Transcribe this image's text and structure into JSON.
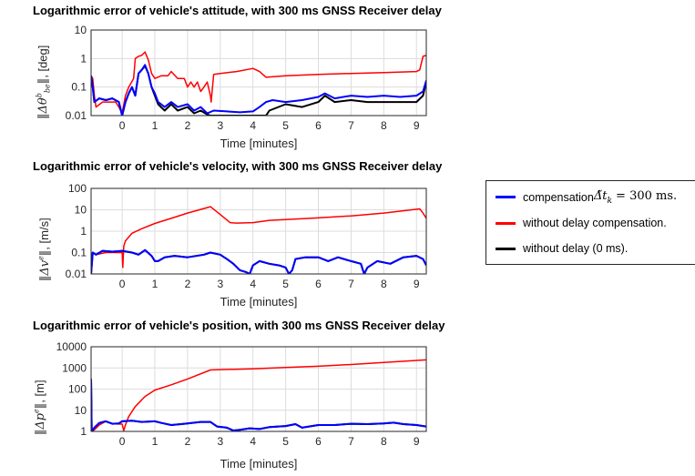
{
  "colors": {
    "compensated": "#0000ff",
    "uncompensated": "#ff0000",
    "no_delay": "#000000",
    "grid": "#dcdcdc",
    "axis": "#262626"
  },
  "legend": {
    "placement": "right",
    "items": [
      {
        "series": "compensated",
        "text": "compensation",
        "math_symbol": "Δ̃t",
        "math_sub": "k",
        "math_rest": " = 300 ms."
      },
      {
        "series": "uncompensated",
        "text": "without delay compensation."
      },
      {
        "series": "no_delay",
        "text": "without delay (0 ms)."
      }
    ]
  },
  "chart_data": [
    {
      "type": "line",
      "title": "Logarithmic error of vehicle's attitude, with 300 ms GNSS Receiver delay",
      "xlabel": "Time [minutes]",
      "ylabel": {
        "symbol": "Δθ",
        "sup": "b",
        "sub": "be",
        "unit": ", [deg]"
      },
      "xlim": [
        -0.95,
        9.3
      ],
      "ylim": [
        0.01,
        10
      ],
      "yscale": "log",
      "grid": true,
      "xticks": [
        0,
        1,
        2,
        3,
        4,
        5,
        6,
        7,
        8,
        9
      ],
      "xticklabels": [
        "0",
        "1",
        "2",
        "3",
        "4",
        "5",
        "6",
        "7",
        "8",
        "9"
      ],
      "yticks": [
        0.01,
        0.1,
        1,
        10
      ],
      "yticklabels": [
        "0.01",
        "0.1",
        "1",
        "10"
      ],
      "series": [
        {
          "key": "uncompensated",
          "x": [
            -0.95,
            -0.9,
            -0.85,
            -0.8,
            -0.6,
            -0.4,
            -0.2,
            -0.1,
            0,
            0.1,
            0.2,
            0.35,
            0.4,
            0.5,
            0.6,
            0.7,
            0.8,
            0.9,
            1.0,
            1.2,
            1.4,
            1.5,
            1.7,
            1.9,
            2.0,
            2.1,
            2.2,
            2.3,
            2.4,
            2.5,
            2.6,
            2.7,
            2.72,
            2.8,
            3.0,
            3.5,
            4.0,
            4.2,
            4.4,
            5,
            6,
            7,
            8,
            9.0,
            9.1,
            9.2,
            9.3
          ],
          "y": [
            0.25,
            0.2,
            0.05,
            0.02,
            0.03,
            0.03,
            0.03,
            0.02,
            0.012,
            0.05,
            0.1,
            0.2,
            1,
            1.2,
            1.3,
            1.7,
            0.9,
            0.3,
            0.2,
            0.25,
            0.25,
            0.35,
            0.2,
            0.2,
            0.1,
            0.15,
            0.1,
            0.15,
            0.07,
            0.1,
            0.15,
            0.05,
            0.03,
            0.28,
            0.3,
            0.35,
            0.45,
            0.35,
            0.22,
            0.25,
            0.28,
            0.3,
            0.32,
            0.35,
            0.4,
            1.2,
            1.3
          ]
        },
        {
          "key": "no_delay",
          "x": [
            -0.95,
            -0.9,
            -0.85,
            -0.7,
            -0.5,
            -0.3,
            -0.1,
            0,
            0.1,
            0.2,
            0.3,
            0.4,
            0.5,
            0.6,
            0.7,
            0.8,
            0.9,
            1.0,
            1.1,
            1.3,
            1.5,
            1.7,
            2.0,
            2.2,
            2.4,
            2.6,
            2.7,
            4.4,
            4.5,
            5,
            5.5,
            6,
            6.2,
            6.5,
            7,
            7.5,
            8,
            8.5,
            9,
            9.2,
            9.3
          ],
          "y": [
            0.25,
            0.1,
            0.03,
            0.04,
            0.035,
            0.04,
            0.03,
            0.01,
            0.03,
            0.06,
            0.1,
            0.05,
            0.3,
            0.4,
            0.55,
            0.3,
            0.1,
            0.05,
            0.025,
            0.015,
            0.025,
            0.015,
            0.02,
            0.012,
            0.015,
            0.011,
            0.01,
            0.01,
            0.015,
            0.025,
            0.02,
            0.03,
            0.05,
            0.03,
            0.035,
            0.03,
            0.03,
            0.03,
            0.03,
            0.05,
            0.15
          ]
        },
        {
          "key": "compensated",
          "x": [
            -0.95,
            -0.9,
            -0.85,
            -0.7,
            -0.5,
            -0.3,
            -0.1,
            0,
            0.1,
            0.2,
            0.3,
            0.4,
            0.5,
            0.6,
            0.7,
            0.8,
            0.9,
            1.0,
            1.1,
            1.3,
            1.5,
            1.7,
            2.0,
            2.2,
            2.4,
            2.6,
            2.8,
            3.2,
            3.6,
            4.0,
            4.2,
            4.4,
            4.6,
            5,
            5.5,
            6,
            6.2,
            6.5,
            7,
            7.5,
            8,
            8.5,
            9,
            9.2,
            9.3
          ],
          "y": [
            0.25,
            0.1,
            0.03,
            0.04,
            0.035,
            0.04,
            0.03,
            0.01,
            0.03,
            0.06,
            0.1,
            0.05,
            0.3,
            0.4,
            0.6,
            0.3,
            0.1,
            0.06,
            0.03,
            0.02,
            0.03,
            0.02,
            0.025,
            0.015,
            0.02,
            0.012,
            0.015,
            0.014,
            0.013,
            0.014,
            0.02,
            0.03,
            0.035,
            0.03,
            0.035,
            0.045,
            0.06,
            0.04,
            0.05,
            0.045,
            0.05,
            0.045,
            0.05,
            0.07,
            0.17
          ]
        }
      ]
    },
    {
      "type": "line",
      "title": "Logarithmic error of vehicle's velocity, with 300 ms GNSS Receiver delay",
      "xlabel": "Time [minutes]",
      "ylabel": {
        "symbol": "Δv",
        "sup": "e",
        "sub": "",
        "unit": ", [m/s]"
      },
      "xlim": [
        -0.95,
        9.3
      ],
      "ylim": [
        0.01,
        100
      ],
      "yscale": "log",
      "grid": true,
      "xticks": [
        0,
        1,
        2,
        3,
        4,
        5,
        6,
        7,
        8,
        9
      ],
      "xticklabels": [
        "0",
        "1",
        "2",
        "3",
        "4",
        "5",
        "6",
        "7",
        "8",
        "9"
      ],
      "yticks": [
        0.01,
        0.1,
        1,
        10,
        100
      ],
      "yticklabels": [
        "0.01",
        "0.1",
        "1",
        "10",
        "100"
      ],
      "series": [
        {
          "key": "uncompensated",
          "x": [
            -0.95,
            -0.9,
            -0.8,
            -0.5,
            -0.2,
            0,
            0.02,
            0.05,
            0.1,
            0.3,
            0.6,
            1,
            1.5,
            2,
            2.7,
            3.0,
            3.3,
            3.5,
            4,
            4.5,
            5,
            6,
            7,
            8,
            9.1,
            9.2,
            9.3
          ],
          "y": [
            0.03,
            0.1,
            0.08,
            0.1,
            0.1,
            0.1,
            0.02,
            0.2,
            0.35,
            0.8,
            1.3,
            2.3,
            4,
            7,
            14,
            6,
            2.5,
            2.4,
            2.5,
            3.2,
            3.5,
            4.2,
            5.2,
            7,
            11,
            7,
            4
          ]
        },
        {
          "key": "no_delay",
          "x": [
            -0.95,
            -0.9,
            -0.8,
            -0.6,
            -0.3,
            0,
            0.3,
            0.5,
            0.7,
            0.9,
            1,
            1.1,
            1.3,
            1.6,
            2,
            2.5,
            2.7,
            3,
            3.2,
            3.4,
            3.6,
            3.8,
            3.9,
            4.0,
            4.2,
            4.5,
            4.8,
            5.0,
            5.1,
            5.2,
            5.3,
            5.6,
            6,
            6.3,
            6.6,
            7,
            7.3,
            7.4,
            7.5,
            7.8,
            8.2,
            8.6,
            9,
            9.2,
            9.3
          ],
          "y": [
            0.01,
            0.1,
            0.08,
            0.12,
            0.11,
            0.12,
            0.1,
            0.08,
            0.13,
            0.07,
            0.04,
            0.04,
            0.06,
            0.07,
            0.06,
            0.08,
            0.1,
            0.08,
            0.05,
            0.03,
            0.015,
            0.012,
            0.01,
            0.025,
            0.04,
            0.03,
            0.025,
            0.02,
            0.01,
            0.015,
            0.05,
            0.06,
            0.06,
            0.04,
            0.06,
            0.04,
            0.03,
            0.01,
            0.02,
            0.04,
            0.03,
            0.06,
            0.07,
            0.05,
            0.025
          ]
        },
        {
          "key": "compensated",
          "x": [
            -0.95,
            -0.9,
            -0.8,
            -0.6,
            -0.3,
            0,
            0.3,
            0.5,
            0.7,
            0.9,
            1,
            1.1,
            1.3,
            1.6,
            2,
            2.5,
            2.7,
            3,
            3.2,
            3.4,
            3.6,
            3.8,
            3.9,
            4.0,
            4.2,
            4.5,
            4.8,
            5.0,
            5.1,
            5.2,
            5.3,
            5.6,
            6,
            6.3,
            6.6,
            7,
            7.3,
            7.4,
            7.5,
            7.8,
            8.2,
            8.6,
            9,
            9.2,
            9.3
          ],
          "y": [
            0.01,
            0.1,
            0.08,
            0.12,
            0.11,
            0.12,
            0.1,
            0.08,
            0.13,
            0.07,
            0.04,
            0.04,
            0.06,
            0.07,
            0.06,
            0.08,
            0.1,
            0.08,
            0.05,
            0.03,
            0.015,
            0.012,
            0.01,
            0.025,
            0.04,
            0.03,
            0.025,
            0.02,
            0.01,
            0.015,
            0.05,
            0.06,
            0.06,
            0.04,
            0.06,
            0.04,
            0.03,
            0.01,
            0.02,
            0.04,
            0.03,
            0.06,
            0.07,
            0.05,
            0.025
          ]
        }
      ]
    },
    {
      "type": "line",
      "title": "Logarithmic error of vehicle's position, with 300 ms GNSS Receiver delay",
      "xlabel": "Time [minutes]",
      "ylabel": {
        "symbol": "Δp",
        "sup": "e",
        "sub": "",
        "unit": ", [m]"
      },
      "xlim": [
        -0.95,
        9.3
      ],
      "ylim": [
        1,
        10000
      ],
      "yscale": "log",
      "grid": true,
      "xticks": [
        0,
        1,
        2,
        3,
        4,
        5,
        6,
        7,
        8,
        9
      ],
      "xticklabels": [
        "0",
        "1",
        "2",
        "3",
        "4",
        "5",
        "6",
        "7",
        "8",
        "9"
      ],
      "yticks": [
        1,
        10,
        100,
        1000,
        10000
      ],
      "yticklabels": [
        "1",
        "10",
        "100",
        "1000",
        "10000"
      ],
      "series": [
        {
          "key": "uncompensated",
          "x": [
            -0.95,
            -0.93,
            -0.85,
            -0.7,
            -0.5,
            -0.3,
            0,
            0.05,
            0.1,
            0.2,
            0.4,
            0.7,
            1,
            1.5,
            2,
            2.7,
            3,
            4,
            5,
            6,
            7,
            8,
            9.3
          ],
          "y": [
            300,
            1,
            1.2,
            2,
            3,
            2.3,
            2.2,
            1.1,
            2,
            5,
            15,
            45,
            90,
            160,
            300,
            800,
            830,
            900,
            1050,
            1200,
            1450,
            1800,
            2400
          ]
        },
        {
          "key": "no_delay",
          "x": [
            -0.95,
            -0.93,
            -0.85,
            -0.7,
            -0.5,
            -0.3,
            -0.1,
            0,
            0.3,
            0.6,
            1,
            1.2,
            1.5,
            1.8,
            2,
            2.4,
            2.7,
            2.9,
            3.2,
            3.4,
            3.6,
            3.9,
            4.2,
            4.5,
            5,
            5.3,
            5.5,
            6,
            6.5,
            7,
            7.5,
            8,
            8.3,
            8.6,
            9,
            9.3
          ],
          "y": [
            300,
            1,
            1.5,
            2.5,
            3,
            2.3,
            2.4,
            3,
            3.2,
            2.8,
            3,
            2.5,
            2,
            2.2,
            2.4,
            2.8,
            2.8,
            1.7,
            1.5,
            1.1,
            1.2,
            1.4,
            1.3,
            1.6,
            1.8,
            2.2,
            1.5,
            2,
            2,
            2.3,
            2.2,
            2.4,
            2.6,
            2.2,
            2,
            1.7
          ]
        },
        {
          "key": "compensated",
          "x": [
            -0.95,
            -0.93,
            -0.85,
            -0.7,
            -0.5,
            -0.3,
            -0.1,
            0,
            0.3,
            0.6,
            1,
            1.2,
            1.5,
            1.8,
            2,
            2.4,
            2.7,
            2.9,
            3.2,
            3.4,
            3.6,
            3.9,
            4.2,
            4.5,
            5,
            5.3,
            5.5,
            6,
            6.5,
            7,
            7.5,
            8,
            8.3,
            8.6,
            9,
            9.3
          ],
          "y": [
            300,
            1,
            1.5,
            2.5,
            3,
            2.3,
            2.4,
            3,
            3.2,
            2.8,
            3,
            2.5,
            2,
            2.2,
            2.4,
            2.8,
            2.8,
            1.7,
            1.5,
            1.1,
            1.2,
            1.4,
            1.3,
            1.6,
            1.8,
            2.2,
            1.5,
            2,
            2,
            2.3,
            2.2,
            2.4,
            2.6,
            2.2,
            2,
            1.7
          ]
        }
      ]
    }
  ]
}
